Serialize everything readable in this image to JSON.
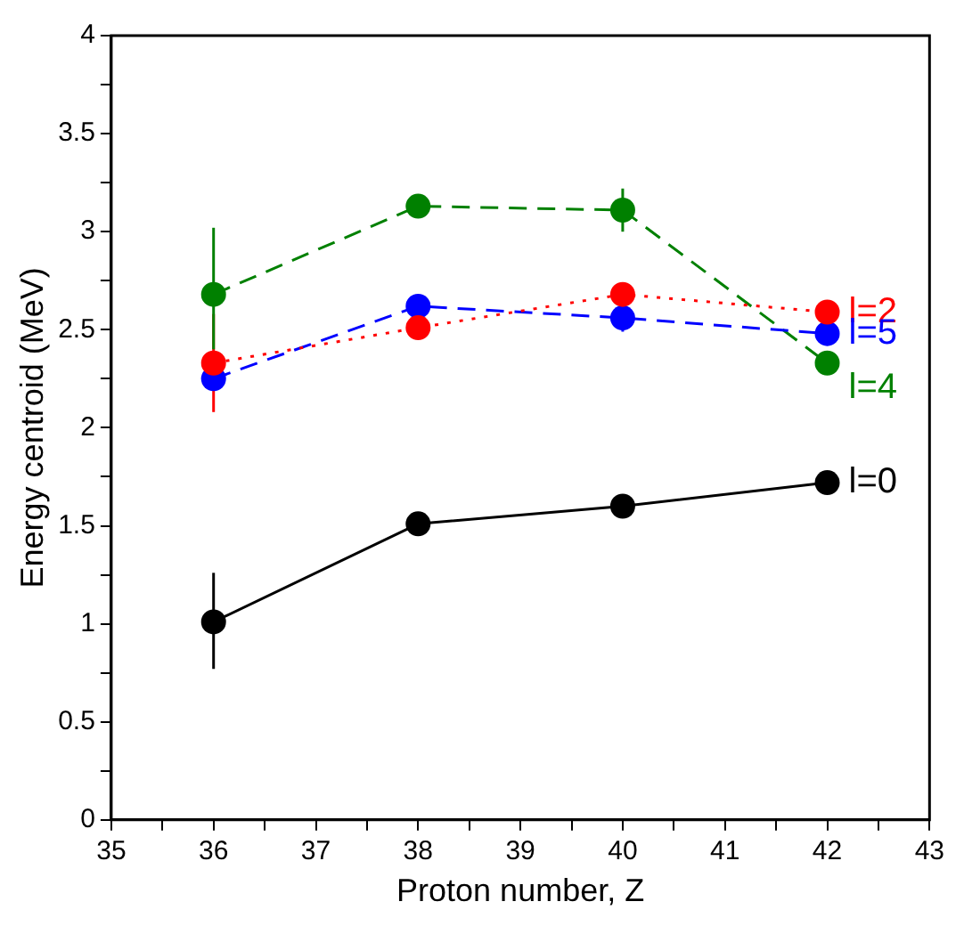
{
  "chart_data": {
    "type": "line",
    "xlabel": "Proton number, Z",
    "ylabel": "Energy centroid (MeV)",
    "x": [
      36,
      38,
      40,
      42
    ],
    "xlim": [
      35,
      43
    ],
    "xticks": [
      35,
      {
        "value": 35.5,
        "label": null
      },
      36,
      {
        "value": 36.5,
        "label": null
      },
      37,
      {
        "value": 37.5,
        "label": null
      },
      38,
      {
        "value": 38.5,
        "label": null
      },
      39,
      {
        "value": 39.5,
        "label": null
      },
      40,
      {
        "value": 40.5,
        "label": null
      },
      41,
      {
        "value": 41.5,
        "label": null
      },
      42,
      {
        "value": 42.5,
        "label": null
      },
      43
    ],
    "ylim": [
      0,
      4
    ],
    "yticks": [
      0,
      {
        "value": 0.25,
        "label": null
      },
      0.5,
      {
        "value": 0.75,
        "label": null
      },
      1,
      {
        "value": 1.25,
        "label": null
      },
      1.5,
      {
        "value": 1.75,
        "label": null
      },
      2,
      {
        "value": 2.25,
        "label": null
      },
      2.5,
      {
        "value": 2.75,
        "label": null
      },
      3,
      {
        "value": 3.25,
        "label": null
      },
      3.5,
      {
        "value": 3.75,
        "label": null
      },
      4
    ],
    "grid": false,
    "legend": false,
    "marker": "circle",
    "series": [
      {
        "name": "l=0",
        "color": "#000000",
        "line_style": "solid",
        "values": [
          1.01,
          1.51,
          1.6,
          1.72
        ],
        "errors": [
          [
            0.77,
            1.26
          ],
          null,
          null,
          null
        ]
      },
      {
        "name": "l=2",
        "color": "#ff0000",
        "line_style": "dotted",
        "values": [
          2.33,
          2.51,
          2.68,
          2.59
        ],
        "errors": [
          0.25,
          null,
          null,
          null
        ]
      },
      {
        "name": "l=5",
        "color": "#0000ff",
        "line_style": "dashed",
        "values": [
          2.25,
          2.62,
          2.56,
          2.48
        ],
        "errors": [
          null,
          null,
          [
            2.49,
            2.63
          ],
          null
        ]
      },
      {
        "name": "l=4",
        "color": "#008000",
        "line_style": "dashed",
        "values": [
          2.68,
          3.13,
          3.11,
          2.33
        ],
        "errors": [
          [
            2.4,
            3.02
          ],
          null,
          [
            3.0,
            3.22
          ],
          [
            2.29,
            2.37
          ]
        ]
      }
    ]
  }
}
